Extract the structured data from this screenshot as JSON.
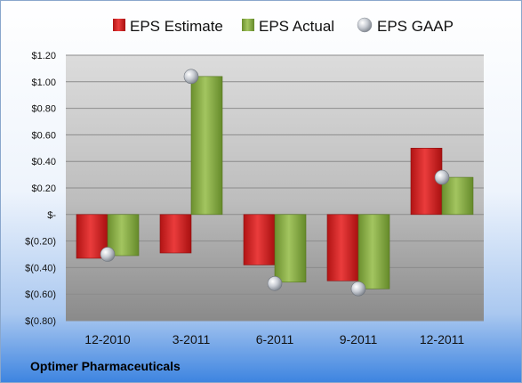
{
  "chart_data": {
    "type": "bar",
    "categories": [
      "12-2010",
      "3-2011",
      "6-2011",
      "9-2011",
      "12-2011"
    ],
    "series": [
      {
        "name": "EPS Estimate",
        "kind": "bar",
        "color": "#d42a2a",
        "values": [
          -0.33,
          -0.29,
          -0.38,
          -0.5,
          0.5
        ]
      },
      {
        "name": "EPS Actual",
        "kind": "bar",
        "color": "#8fb34a",
        "values": [
          -0.31,
          1.04,
          -0.51,
          -0.56,
          0.28
        ]
      },
      {
        "name": "EPS GAAP",
        "kind": "marker",
        "color": "#b8bcc4",
        "values": [
          -0.3,
          1.04,
          -0.52,
          -0.56,
          0.28
        ]
      }
    ],
    "yticks": [
      "$1.20",
      "$1.00",
      "$0.80",
      "$0.60",
      "$0.40",
      "$0.20",
      "$-",
      "$(0.20)",
      "$(0.40)",
      "$(0.60)",
      "$(0.80)"
    ],
    "ylim": [
      -0.8,
      1.2
    ],
    "grid": true,
    "legend_position": "top",
    "footer": "Optimer Pharmaceuticals"
  }
}
